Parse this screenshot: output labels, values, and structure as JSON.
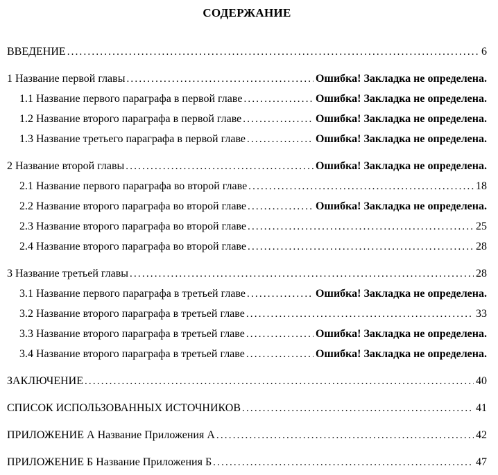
{
  "colors": {
    "text": "#000000",
    "background": "#ffffff"
  },
  "toc": {
    "title": "СОДЕРЖАНИЕ",
    "error_text": "Ошибка! Закладка не определена.",
    "entries": [
      {
        "label": "ВВЕДЕНИЕ",
        "page": "6"
      },
      {
        "label": "1 Название первой главы",
        "page": "Ошибка! Закладка не определена."
      },
      {
        "label": "1.1 Название первого параграфа в первой главе",
        "page": "Ошибка! Закладка не определена."
      },
      {
        "label": "1.2 Название второго параграфа в первой главе",
        "page": "Ошибка! Закладка не определена."
      },
      {
        "label": "1.3 Название третьего параграфа в первой главе",
        "page": "Ошибка! Закладка не определена."
      },
      {
        "label": "2 Название второй главы",
        "page": "Ошибка! Закладка не определена."
      },
      {
        "label": "2.1 Название первого параграфа во второй главе",
        "page": "18"
      },
      {
        "label": "2.2 Название второго параграфа во второй главе",
        "page": "Ошибка! Закладка не определена."
      },
      {
        "label": "2.3 Название второго параграфа во второй главе",
        "page": "25"
      },
      {
        "label": "2.4 Название второго параграфа во второй главе",
        "page": "28"
      },
      {
        "label": "3 Название третьей главы",
        "page": "28"
      },
      {
        "label": "3.1 Название первого параграфа в третьей главе",
        "page": "Ошибка! Закладка не определена."
      },
      {
        "label": "3.2 Название второго параграфа в третьей главе",
        "page": "33"
      },
      {
        "label": "3.3 Название второго параграфа в третьей главе",
        "page": "Ошибка! Закладка не определена."
      },
      {
        "label": "3.4 Название второго параграфа в третьей главе",
        "page": "Ошибка! Закладка не определена."
      },
      {
        "label": "ЗАКЛЮЧЕНИЕ",
        "page": "40"
      },
      {
        "label": "СПИСОК ИСПОЛЬЗОВАННЫХ ИСТОЧНИКОВ",
        "page": "41"
      },
      {
        "label": "ПРИЛОЖЕНИЕ А Название Приложения А",
        "page": "42"
      },
      {
        "label": "ПРИЛОЖЕНИЕ Б Название Приложения Б",
        "page": "47"
      }
    ]
  }
}
